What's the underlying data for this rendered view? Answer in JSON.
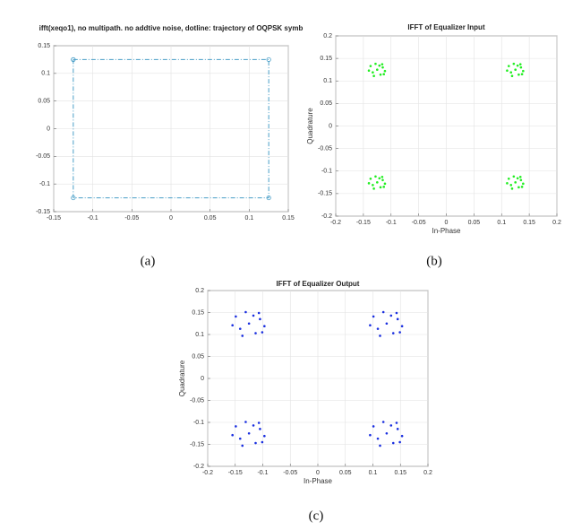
{
  "chart_data": [
    {
      "type": "line",
      "title": "ifft(xeqo1), no multipath. no addtive noise, dotline: trajectory of OQPSK symb",
      "caption": "(a)",
      "x": [
        -0.125,
        0.125,
        0.125,
        -0.125,
        -0.125
      ],
      "series": [
        {
          "color": "#4a9fc8",
          "values": [
            0.125,
            0.125,
            -0.125,
            -0.125,
            0.125
          ]
        }
      ],
      "xlim": [
        -0.15,
        0.15
      ],
      "xticks": [
        -0.15,
        -0.1,
        -0.05,
        0,
        0.05,
        0.1,
        0.15
      ],
      "ylim": [
        -0.15,
        0.15
      ],
      "yticks": [
        -0.15,
        -0.1,
        -0.05,
        0,
        0.05,
        0.1,
        0.15
      ],
      "grid": true
    },
    {
      "type": "scatter",
      "title": "IFFT of Equalizer Input",
      "caption": "(b)",
      "xlabel": "In-Phase",
      "ylabel": "Quadrature",
      "x": [
        -0.125,
        -0.115,
        -0.137,
        -0.119,
        -0.133,
        -0.111,
        -0.128,
        -0.121,
        -0.14,
        -0.116,
        -0.131,
        -0.113,
        0.125,
        0.135,
        0.113,
        0.131,
        0.117,
        0.139,
        0.122,
        0.129,
        0.11,
        0.134,
        0.119,
        0.137,
        -0.125,
        -0.115,
        -0.137,
        -0.119,
        -0.133,
        -0.111,
        -0.128,
        -0.121,
        -0.14,
        -0.116,
        -0.131,
        -0.113,
        0.125,
        0.135,
        0.113,
        0.131,
        0.117,
        0.139,
        0.122,
        0.129,
        0.11,
        0.134,
        0.119,
        0.137
      ],
      "series": [
        {
          "color": "#22ee22",
          "values": [
            0.125,
            0.13,
            0.133,
            0.114,
            0.119,
            0.122,
            0.138,
            0.134,
            0.123,
            0.137,
            0.111,
            0.115,
            0.125,
            0.13,
            0.133,
            0.114,
            0.119,
            0.122,
            0.138,
            0.134,
            0.123,
            0.137,
            0.111,
            0.115,
            -0.125,
            -0.12,
            -0.117,
            -0.136,
            -0.131,
            -0.128,
            -0.112,
            -0.116,
            -0.127,
            -0.113,
            -0.139,
            -0.135,
            -0.125,
            -0.12,
            -0.117,
            -0.136,
            -0.131,
            -0.128,
            -0.112,
            -0.116,
            -0.127,
            -0.113,
            -0.139,
            -0.135
          ]
        }
      ],
      "xlim": [
        -0.2,
        0.2
      ],
      "xticks": [
        -0.2,
        -0.15,
        -0.1,
        -0.05,
        0,
        0.05,
        0.1,
        0.15,
        0.2
      ],
      "ylim": [
        -0.2,
        0.2
      ],
      "yticks": [
        -0.2,
        -0.15,
        -0.1,
        -0.05,
        0,
        0.05,
        0.1,
        0.15,
        0.2
      ],
      "grid": true
    },
    {
      "type": "scatter",
      "title": "IFFT of Equalizer Output",
      "caption": "(c)",
      "xlabel": "In-Phase",
      "ylabel": "Quadrature",
      "x": [
        -0.125,
        -0.105,
        -0.149,
        -0.113,
        -0.141,
        -0.097,
        -0.131,
        -0.117,
        -0.155,
        -0.107,
        -0.137,
        -0.101,
        0.125,
        0.145,
        0.101,
        0.137,
        0.109,
        0.153,
        0.119,
        0.133,
        0.095,
        0.143,
        0.113,
        0.149,
        -0.125,
        -0.105,
        -0.149,
        -0.113,
        -0.141,
        -0.097,
        -0.131,
        -0.117,
        -0.155,
        -0.107,
        -0.137,
        -0.101,
        0.125,
        0.145,
        0.101,
        0.137,
        0.109,
        0.153,
        0.119,
        0.133,
        0.095,
        0.143,
        0.113,
        0.149
      ],
      "series": [
        {
          "color": "#1a2fe0",
          "values": [
            0.125,
            0.135,
            0.141,
            0.103,
            0.113,
            0.119,
            0.151,
            0.143,
            0.121,
            0.149,
            0.097,
            0.105,
            0.125,
            0.135,
            0.141,
            0.103,
            0.113,
            0.119,
            0.151,
            0.143,
            0.121,
            0.149,
            0.097,
            0.105,
            -0.125,
            -0.115,
            -0.109,
            -0.147,
            -0.137,
            -0.131,
            -0.099,
            -0.107,
            -0.129,
            -0.101,
            -0.153,
            -0.145,
            -0.125,
            -0.115,
            -0.109,
            -0.147,
            -0.137,
            -0.131,
            -0.099,
            -0.107,
            -0.129,
            -0.101,
            -0.153,
            -0.145
          ]
        }
      ],
      "xlim": [
        -0.2,
        0.2
      ],
      "xticks": [
        -0.2,
        -0.15,
        -0.1,
        -0.05,
        0,
        0.05,
        0.1,
        0.15,
        0.2
      ],
      "ylim": [
        -0.2,
        0.2
      ],
      "yticks": [
        -0.2,
        -0.15,
        -0.1,
        -0.05,
        0,
        0.05,
        0.1,
        0.15,
        0.2
      ],
      "grid": true
    }
  ]
}
